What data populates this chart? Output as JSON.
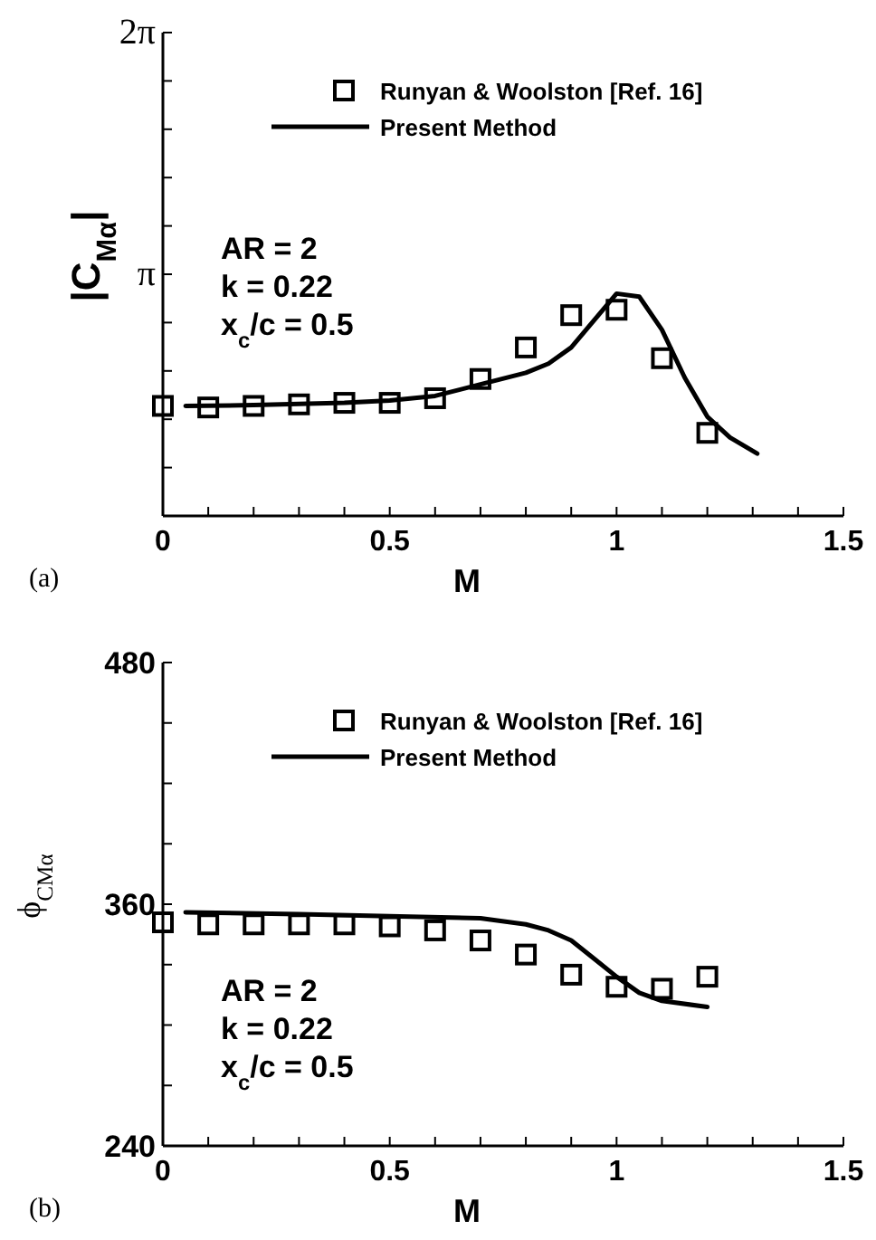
{
  "chart_data": [
    {
      "type": "line",
      "xlabel": "M",
      "ylabel": "|C$_{Mα}$|",
      "xlim": [
        0,
        1.5
      ],
      "ylim": [
        0,
        6.2832
      ],
      "xticks": [
        0,
        {
          "value": 0.1,
          "label": null
        },
        {
          "value": 0.2,
          "label": null
        },
        {
          "value": 0.3,
          "label": null
        },
        {
          "value": 0.4,
          "label": null
        },
        0.5,
        {
          "value": 0.6,
          "label": null
        },
        {
          "value": 0.7,
          "label": null
        },
        {
          "value": 0.8,
          "label": null
        },
        {
          "value": 0.9,
          "label": null
        },
        1,
        {
          "value": 1.1,
          "label": null
        },
        {
          "value": 1.2,
          "label": null
        },
        {
          "value": 1.3,
          "label": null
        },
        {
          "value": 1.4,
          "label": null
        },
        1.5
      ],
      "yticks": [
        {
          "value": 0,
          "label": null
        },
        {
          "value": 0.6283,
          "label": null
        },
        {
          "value": 1.2566,
          "label": null
        },
        {
          "value": 1.885,
          "label": null
        },
        {
          "value": 2.5133,
          "label": null
        },
        {
          "value": 3.1416,
          "label": "π"
        },
        {
          "value": 3.7699,
          "label": null
        },
        {
          "value": 4.3982,
          "label": null
        },
        {
          "value": 5.0265,
          "label": null
        },
        {
          "value": 5.6549,
          "label": null
        },
        {
          "value": 6.2832,
          "label": "2π"
        }
      ],
      "grid": false,
      "legend": "top",
      "annotations": [
        "AR = 2",
        "k = 0.22",
        "x$_{c}$/c = 0.5",
        "(a)"
      ],
      "series": [
        {
          "name": "Runyan & Woolston [Ref. 16]",
          "type": "scatter",
          "marker": "square",
          "color": "#000000",
          "x": [
            0,
            0.1,
            0.2,
            0.3,
            0.4,
            0.5,
            0.6,
            0.7,
            0.8,
            0.9,
            1.0,
            1.1,
            1.2
          ],
          "values": [
            1.43,
            1.41,
            1.43,
            1.45,
            1.47,
            1.47,
            1.53,
            1.78,
            2.19,
            2.61,
            2.68,
            2.05,
            1.08
          ]
        },
        {
          "name": "Present Method",
          "type": "line",
          "marker": "none",
          "color": "#000000",
          "x": [
            0.05,
            0.2,
            0.4,
            0.5,
            0.6,
            0.7,
            0.8,
            0.85,
            0.9,
            0.95,
            1.0,
            1.05,
            1.1,
            1.15,
            1.2,
            1.25,
            1.31
          ],
          "values": [
            1.43,
            1.44,
            1.47,
            1.5,
            1.56,
            1.71,
            1.86,
            1.98,
            2.19,
            2.54,
            2.89,
            2.85,
            2.42,
            1.8,
            1.29,
            1.02,
            0.81
          ]
        }
      ]
    },
    {
      "type": "line",
      "xlabel": "M",
      "ylabel": "ϕ$_{CMα}$",
      "xlim": [
        0,
        1.5
      ],
      "ylim": [
        240,
        480
      ],
      "xticks": [
        0,
        {
          "value": 0.1,
          "label": null
        },
        {
          "value": 0.2,
          "label": null
        },
        {
          "value": 0.3,
          "label": null
        },
        {
          "value": 0.4,
          "label": null
        },
        0.5,
        {
          "value": 0.6,
          "label": null
        },
        {
          "value": 0.7,
          "label": null
        },
        {
          "value": 0.8,
          "label": null
        },
        {
          "value": 0.9,
          "label": null
        },
        1,
        {
          "value": 1.1,
          "label": null
        },
        {
          "value": 1.2,
          "label": null
        },
        {
          "value": 1.3,
          "label": null
        },
        {
          "value": 1.4,
          "label": null
        },
        1.5
      ],
      "yticks": [
        240,
        {
          "value": 270,
          "label": null
        },
        {
          "value": 300,
          "label": null
        },
        {
          "value": 330,
          "label": null
        },
        360,
        {
          "value": 390,
          "label": null
        },
        {
          "value": 420,
          "label": null
        },
        {
          "value": 450,
          "label": null
        },
        480
      ],
      "grid": false,
      "legend": "top",
      "annotations": [
        "AR = 2",
        "k = 0.22",
        "x$_{c}$/c = 0.5",
        "(b)"
      ],
      "series": [
        {
          "name": "Runyan & Woolston [Ref. 16]",
          "type": "scatter",
          "marker": "square",
          "color": "#000000",
          "x": [
            0,
            0.1,
            0.2,
            0.3,
            0.4,
            0.5,
            0.6,
            0.7,
            0.8,
            0.9,
            1.0,
            1.1,
            1.2
          ],
          "values": [
            351,
            350,
            350,
            350,
            350,
            349,
            347,
            342,
            335,
            325,
            319,
            318,
            324
          ]
        },
        {
          "name": "Present Method",
          "type": "line",
          "marker": "none",
          "color": "#000000",
          "x": [
            0.05,
            0.3,
            0.5,
            0.7,
            0.8,
            0.85,
            0.9,
            0.95,
            1.0,
            1.05,
            1.1,
            1.2
          ],
          "values": [
            356,
            355,
            354,
            353,
            350,
            347,
            342,
            333,
            324,
            316,
            312,
            309
          ]
        }
      ]
    }
  ]
}
